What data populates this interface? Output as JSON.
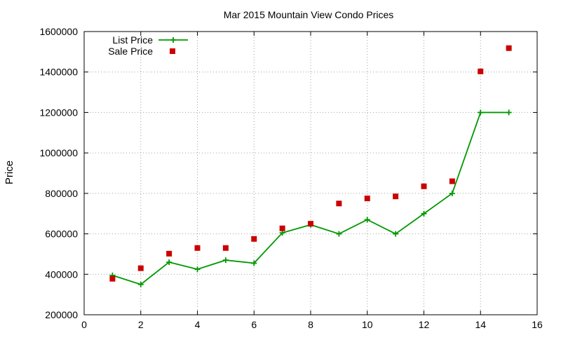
{
  "chart_data": {
    "type": "line",
    "title": "Mar 2015 Mountain View Condo Prices",
    "xlabel": "",
    "ylabel": "Price",
    "xlim": [
      0,
      16
    ],
    "ylim": [
      200000,
      1600000
    ],
    "xticks": [
      0,
      2,
      4,
      6,
      8,
      10,
      12,
      14,
      16
    ],
    "yticks": [
      200000,
      400000,
      600000,
      800000,
      1000000,
      1200000,
      1400000,
      1600000
    ],
    "grid": true,
    "legend_position": "top-left",
    "series": [
      {
        "name": "List Price",
        "style": "line-points",
        "marker": "plus",
        "color": "#009900",
        "x": [
          1,
          2,
          3,
          4,
          5,
          6,
          7,
          8,
          9,
          10,
          11,
          12,
          13,
          14,
          15
        ],
        "y": [
          395000,
          350000,
          460000,
          425000,
          470000,
          455000,
          605000,
          645000,
          600000,
          670000,
          600000,
          700000,
          800000,
          1200000,
          1200000
        ]
      },
      {
        "name": "Sale Price",
        "style": "points",
        "marker": "square",
        "color": "#cc0000",
        "x": [
          1,
          2,
          3,
          4,
          5,
          6,
          7,
          8,
          9,
          10,
          11,
          12,
          13,
          14,
          15
        ],
        "y": [
          378000,
          430000,
          502000,
          530000,
          530000,
          575000,
          627000,
          650000,
          750000,
          775000,
          785000,
          835000,
          860000,
          1403000,
          1518000
        ]
      }
    ]
  }
}
